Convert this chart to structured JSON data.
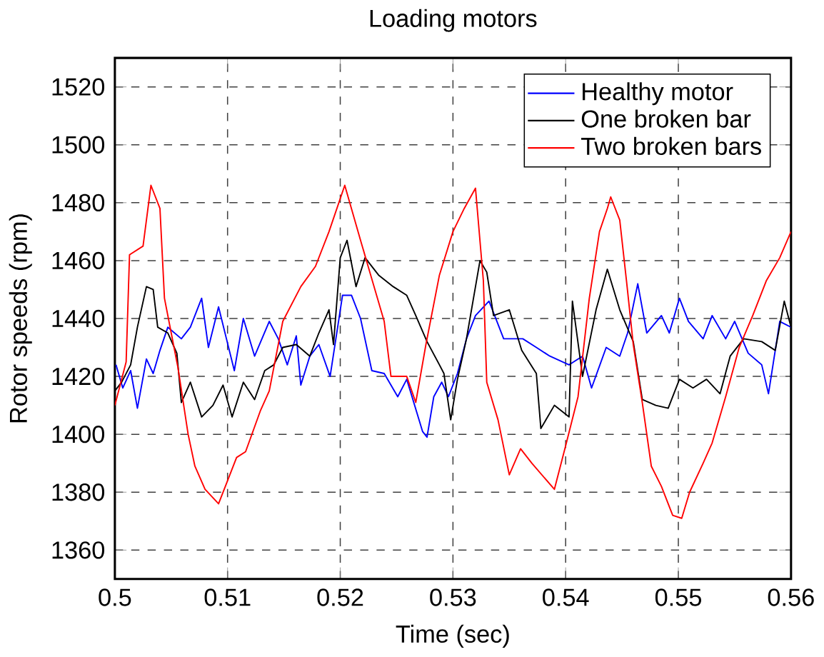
{
  "chart_data": {
    "type": "line",
    "title": "Loading motors",
    "xlabel": "Time (sec)",
    "ylabel": "Rotor speeds (rpm)",
    "xlim": [
      0.5,
      0.56
    ],
    "ylim": [
      1350,
      1530
    ],
    "xticks": [
      0.5,
      0.51,
      0.52,
      0.53,
      0.54,
      0.55,
      0.56
    ],
    "yticks": [
      1360,
      1380,
      1400,
      1420,
      1440,
      1460,
      1480,
      1500,
      1520
    ],
    "grid": true,
    "legend": "top right",
    "line_style": "solid",
    "marker": "none",
    "series": [
      {
        "name": "Healthy motor",
        "color": "#0000ff",
        "x": [
          0.5001,
          0.5007,
          0.5014,
          0.502,
          0.5028,
          0.5034,
          0.504,
          0.5047,
          0.5059,
          0.5067,
          0.5077,
          0.5083,
          0.5092,
          0.5099,
          0.5106,
          0.5114,
          0.5124,
          0.5137,
          0.5145,
          0.5153,
          0.5161,
          0.5165,
          0.5173,
          0.5181,
          0.5191,
          0.5202,
          0.521,
          0.5218,
          0.5228,
          0.5239,
          0.5251,
          0.5259,
          0.5273,
          0.5277,
          0.5283,
          0.529,
          0.5296,
          0.5304,
          0.5312,
          0.532,
          0.5332,
          0.5345,
          0.5362,
          0.5374,
          0.5386,
          0.5403,
          0.5415,
          0.5423,
          0.5436,
          0.5448,
          0.5455,
          0.5464,
          0.5472,
          0.5485,
          0.5492,
          0.5501,
          0.5509,
          0.5522,
          0.553,
          0.5542,
          0.555,
          0.5562,
          0.5574,
          0.558,
          0.559,
          0.56
        ],
        "values": [
          1424,
          1416,
          1422,
          1409,
          1426,
          1421,
          1429,
          1437,
          1433,
          1437,
          1447,
          1430,
          1444,
          1433,
          1422,
          1440,
          1427,
          1439,
          1433,
          1424,
          1434,
          1417,
          1427,
          1431,
          1420,
          1448,
          1448,
          1440,
          1422,
          1421,
          1413,
          1419,
          1401,
          1399,
          1413,
          1418,
          1413,
          1421,
          1433,
          1441,
          1446,
          1433,
          1433,
          1430,
          1427,
          1424,
          1427,
          1416,
          1430,
          1427,
          1435,
          1452,
          1435,
          1441,
          1435,
          1447,
          1439,
          1433,
          1441,
          1433,
          1439,
          1428,
          1424,
          1414,
          1439,
          1437
        ]
      },
      {
        "name": "One broken bar",
        "color": "#000000",
        "x": [
          0.5,
          0.5006,
          0.5014,
          0.502,
          0.5028,
          0.5034,
          0.5038,
          0.5047,
          0.5055,
          0.5059,
          0.5067,
          0.5077,
          0.5087,
          0.5096,
          0.5104,
          0.5114,
          0.5124,
          0.5133,
          0.5141,
          0.5149,
          0.5161,
          0.5173,
          0.5181,
          0.519,
          0.5194,
          0.52,
          0.5206,
          0.5214,
          0.5222,
          0.5234,
          0.5247,
          0.5259,
          0.5267,
          0.5277,
          0.5288,
          0.5292,
          0.5298,
          0.5304,
          0.5312,
          0.5324,
          0.533,
          0.5336,
          0.535,
          0.5361,
          0.5374,
          0.5378,
          0.539,
          0.5403,
          0.5406,
          0.5415,
          0.5427,
          0.5437,
          0.5448,
          0.546,
          0.5468,
          0.548,
          0.5491,
          0.5501,
          0.5513,
          0.5525,
          0.5537,
          0.5546,
          0.5558,
          0.5574,
          0.5586,
          0.5594,
          0.56
        ],
        "values": [
          1415,
          1418,
          1424,
          1437,
          1451,
          1450,
          1437,
          1435,
          1428,
          1411,
          1418,
          1406,
          1410,
          1417,
          1406,
          1418,
          1412,
          1422,
          1424,
          1430,
          1431,
          1427,
          1435,
          1443,
          1431,
          1461,
          1467,
          1451,
          1461,
          1455,
          1451,
          1448,
          1441,
          1432,
          1424,
          1421,
          1405,
          1419,
          1433,
          1460,
          1456,
          1441,
          1443,
          1429,
          1421,
          1402,
          1410,
          1406,
          1446,
          1420,
          1443,
          1457,
          1443,
          1432,
          1412,
          1410,
          1409,
          1419,
          1416,
          1419,
          1414,
          1427,
          1433,
          1432,
          1429,
          1446,
          1437
        ]
      },
      {
        "name": "Two broken bars",
        "color": "#ff0000",
        "x": [
          0.5,
          0.501,
          0.5013,
          0.5025,
          0.5032,
          0.504,
          0.5044,
          0.505,
          0.5056,
          0.5065,
          0.5071,
          0.508,
          0.5092,
          0.5099,
          0.5108,
          0.5116,
          0.5129,
          0.5137,
          0.5149,
          0.5165,
          0.5178,
          0.519,
          0.5204,
          0.5218,
          0.5227,
          0.5239,
          0.5245,
          0.5259,
          0.5267,
          0.5276,
          0.5288,
          0.53,
          0.531,
          0.532,
          0.5327,
          0.533,
          0.534,
          0.535,
          0.536,
          0.537,
          0.539,
          0.54,
          0.5411,
          0.5421,
          0.543,
          0.5437,
          0.544,
          0.5448,
          0.5454,
          0.546,
          0.5468,
          0.5476,
          0.5485,
          0.5495,
          0.5503,
          0.551,
          0.5522,
          0.553,
          0.5542,
          0.5554,
          0.5566,
          0.5578,
          0.559,
          0.56
        ],
        "values": [
          1410,
          1425,
          1462,
          1465,
          1486,
          1478,
          1447,
          1435,
          1423,
          1400,
          1389,
          1381,
          1376,
          1383,
          1392,
          1394,
          1408,
          1415,
          1439,
          1451,
          1458,
          1470,
          1486,
          1467,
          1455,
          1439,
          1420,
          1420,
          1411,
          1431,
          1455,
          1470,
          1478,
          1485,
          1453,
          1418,
          1405,
          1386,
          1395,
          1390,
          1381,
          1396,
          1413,
          1447,
          1470,
          1478,
          1482,
          1474,
          1453,
          1431,
          1411,
          1389,
          1382,
          1372,
          1371,
          1380,
          1390,
          1397,
          1413,
          1430,
          1441,
          1453,
          1461,
          1470
        ]
      }
    ]
  }
}
